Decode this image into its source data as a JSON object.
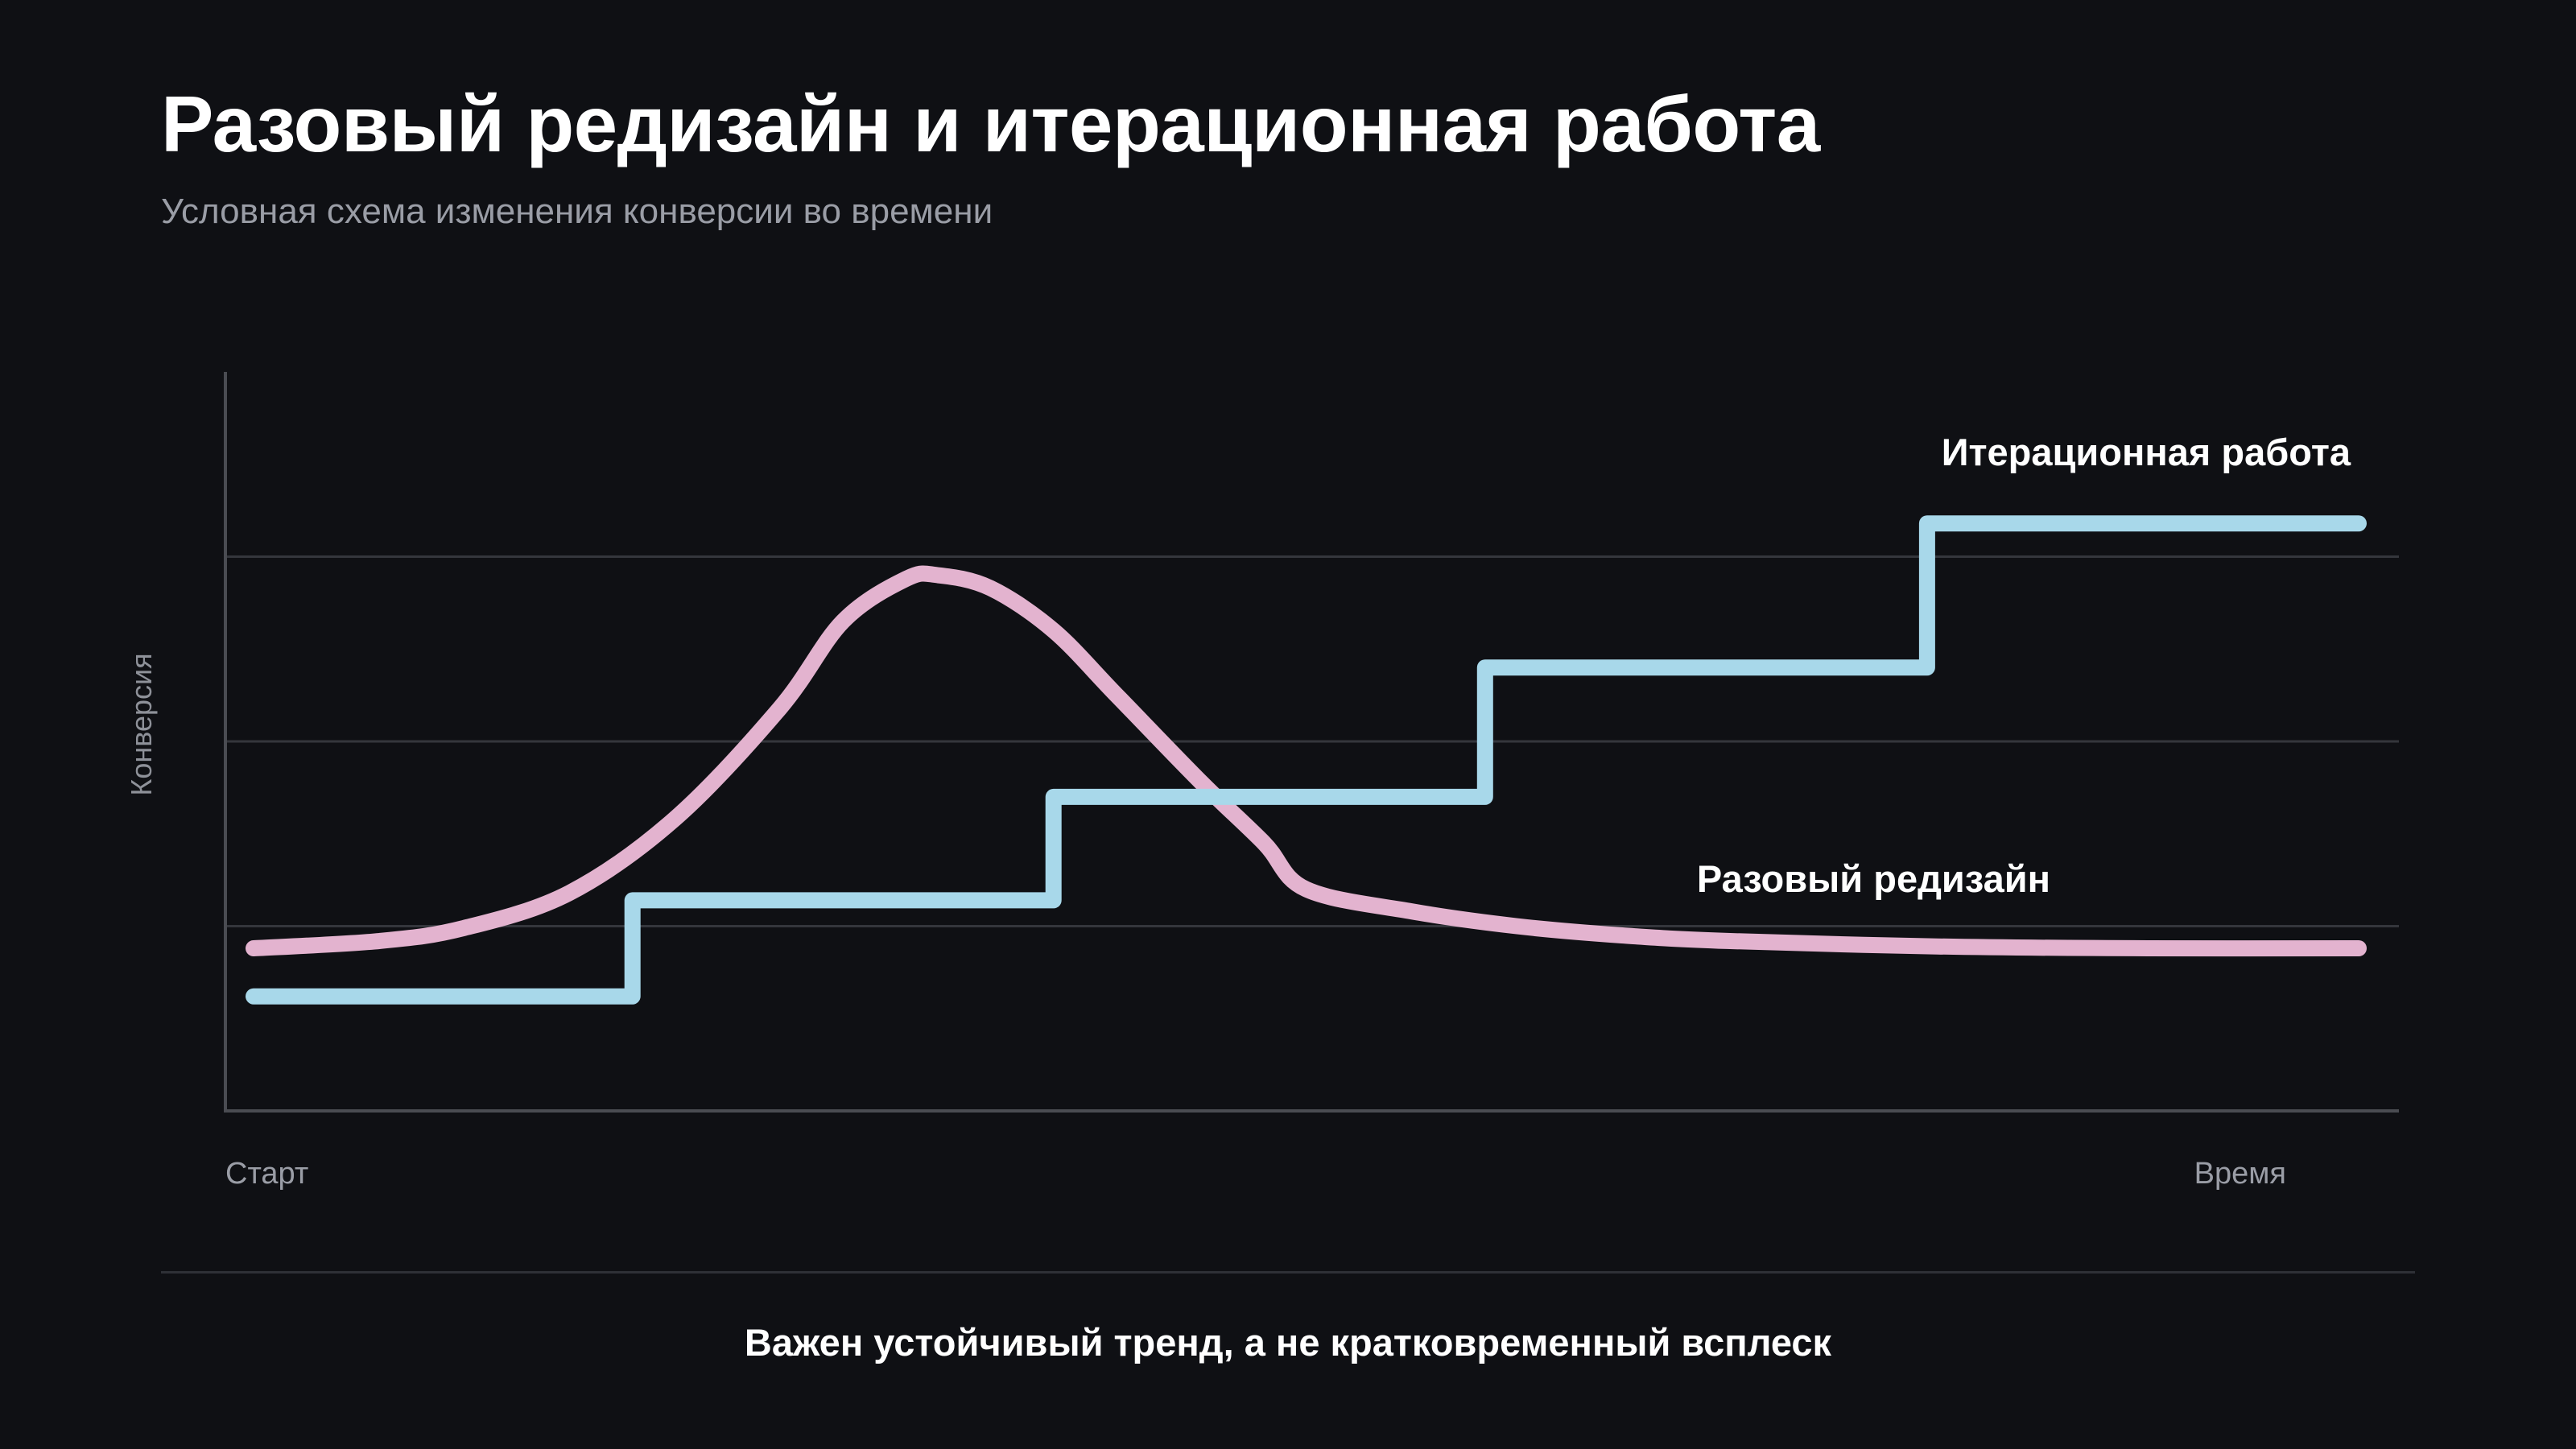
{
  "header": {
    "title": "Разовый редизайн и итерационная работа",
    "subtitle": "Условная схема изменения конверсии во времени"
  },
  "footer": {
    "takeaway": "Важен устойчивый тренд, а не кратковременный всплеск"
  },
  "chart_data": {
    "type": "line",
    "title": "",
    "xlabel": "",
    "ylabel": "Конверсия",
    "x_tick_labels": {
      "start": "Старт",
      "end": "Время"
    },
    "xlim": [
      0,
      10
    ],
    "ylim": [
      0,
      4
    ],
    "grid": true,
    "legend": "inline labels at line ends",
    "series": [
      {
        "name": "Итерационная работа",
        "color": "#a8d8ea",
        "step": true,
        "x": [
          0,
          1.8,
          1.8,
          3.8,
          3.8,
          5.85,
          5.85,
          7.95,
          7.95,
          10
        ],
        "y": [
          0.62,
          0.62,
          1.14,
          1.14,
          1.7,
          1.7,
          2.4,
          2.4,
          3.18,
          3.18
        ]
      },
      {
        "name": "Разовый редизайн",
        "color": "#e3b3cf",
        "step": false,
        "x": [
          0,
          0.6,
          1.0,
          1.5,
          2.0,
          2.5,
          2.8,
          3.1,
          3.25,
          3.5,
          3.8,
          4.1,
          4.5,
          4.8,
          5.0,
          5.5,
          6.0,
          6.5,
          7.0,
          8.0,
          9.0,
          10
        ],
        "y": [
          0.88,
          0.92,
          0.99,
          1.18,
          1.58,
          2.18,
          2.65,
          2.88,
          2.9,
          2.83,
          2.6,
          2.25,
          1.78,
          1.45,
          1.2,
          1.08,
          1.0,
          0.95,
          0.92,
          0.89,
          0.88,
          0.88
        ]
      }
    ]
  }
}
